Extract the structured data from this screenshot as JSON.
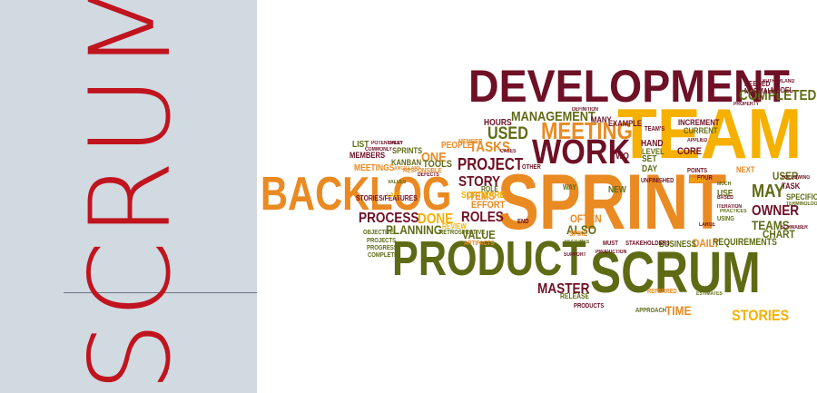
{
  "sidebar": {
    "title": "SCRUM"
  },
  "colors": {
    "title_red": "#c0141e",
    "panel_bg": "#d1d9e1",
    "maroon": "#6e1026",
    "orange": "#e98a22",
    "amber": "#f6b000",
    "olive": "#5f6b14"
  },
  "word_cloud": {
    "words": [
      "DEVELOPMENT",
      "TEAM",
      "SPRINT",
      "BACKLOG",
      "PRODUCT",
      "SCRUM",
      "WORK",
      "MEETING",
      "MANAGEMENT",
      "COMPLETED",
      "TASKS",
      "USED",
      "PROJECT",
      "STORY",
      "PROCESS",
      "DONE",
      "ROLES",
      "PLANNING",
      "ITEMS",
      "EFFORT",
      "SOFTWARE",
      "VALUE",
      "ALSO",
      "OFTEN",
      "ONE",
      "TOOLS",
      "MASTER",
      "STORIES",
      "TIME",
      "DAILY",
      "OWNER",
      "TEAMS",
      "MAY",
      "USER",
      "CHART",
      "REQUIREMENTS",
      "BUSINESS",
      "HOURS",
      "LIST",
      "SPRINTS",
      "KANBAN",
      "MEMBERS",
      "MEETINGS",
      "PEOPLE",
      "NEW",
      "CORE",
      "SET",
      "DAY",
      "TASK",
      "SPECIFIC",
      "USE",
      "NEXT",
      "HAND",
      "LEVEL",
      "INCREMENT",
      "CURRENT",
      "NEEDED",
      "NORMALLY",
      "MODEL",
      "MANY",
      "EXAMPLE",
      "TWO",
      "RELEASE",
      "PRODUCTS",
      "APPROACH",
      "MUST",
      "STAKEHOLDERS",
      "REFERRED",
      "SPIKE",
      "RETROSPECTIVE",
      "OBJECTIVE",
      "PROJECTS",
      "PROGRESS",
      "COMPLETE",
      "STORIES/FEATURES",
      "RESPONSIBLE",
      "MEMBER",
      "ROLE",
      "REVIEW",
      "ARTIFACTS",
      "WAY",
      "END",
      "TEAM'S",
      "POINTS",
      "FEATURES",
      "USING",
      "UNFINISHED",
      "SUPPORT",
      "FOUR",
      "TERMINOLOGY",
      "ESTIMATES",
      "PRODUCTION",
      "FOLLOWING",
      "COMMONLY",
      "EVERY",
      "ANCILLARY",
      "DEFECTS",
      "VALUES",
      "POTENTIALLY",
      "LAST",
      "OTHER",
      "CASES",
      "PROPERTY",
      "SCHWABER",
      "SUTHERLAND",
      "DEFINITION",
      "ITERATION",
      "BASED",
      "PRACTICES",
      "LARGE",
      "MUCH",
      "BURN",
      "APPLIED"
    ]
  }
}
